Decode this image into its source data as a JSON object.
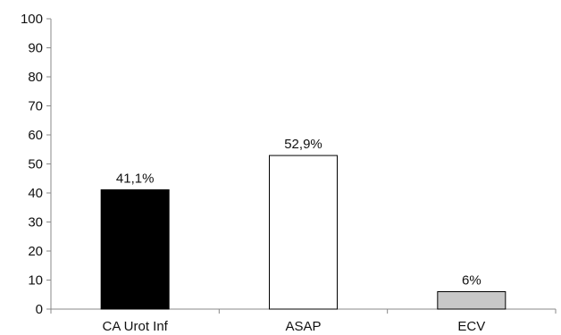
{
  "chart_data": {
    "type": "bar",
    "categories": [
      "CA Urot Inf",
      "ASAP",
      "ECV"
    ],
    "values": [
      41.1,
      52.9,
      6
    ],
    "data_labels": [
      "41,1%",
      "52,9%",
      "6%"
    ],
    "bar_colors": [
      "#000000",
      "#ffffff",
      "#c8c8c8"
    ],
    "bar_stroke": "#000000",
    "title": "",
    "xlabel": "",
    "ylabel": "",
    "ylim": [
      0,
      100
    ],
    "yticks": [
      0,
      10,
      20,
      30,
      40,
      50,
      60,
      70,
      80,
      90,
      100
    ],
    "grid": false,
    "legend": "none"
  }
}
